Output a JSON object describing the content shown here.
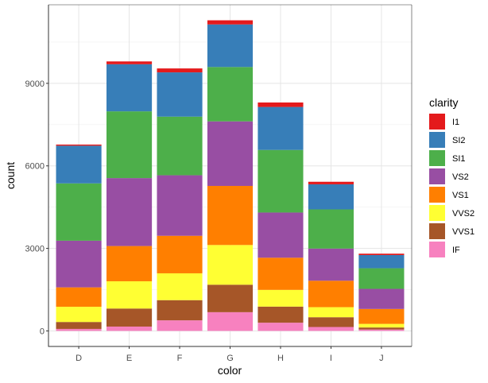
{
  "chart_data": {
    "type": "bar",
    "stacked": true,
    "xlabel": "color",
    "ylabel": "count",
    "ylim": [
      0,
      11292
    ],
    "yticks": [
      "0",
      "3000",
      "6000",
      "9000"
    ],
    "grid": true,
    "legend_position": "right",
    "legend_title": "clarity",
    "categories": [
      "D",
      "E",
      "F",
      "G",
      "H",
      "I",
      "J"
    ],
    "series": [
      {
        "name": "I1",
        "color": "#E41A1C",
        "values": [
          42,
          102,
          143,
          150,
          162,
          92,
          50
        ]
      },
      {
        "name": "SI2",
        "color": "#377EB8",
        "values": [
          1370,
          1713,
          1609,
          1548,
          1563,
          912,
          479
        ]
      },
      {
        "name": "SI1",
        "color": "#4DAF4A",
        "values": [
          2083,
          2426,
          2131,
          1976,
          2275,
          1424,
          750
        ]
      },
      {
        "name": "VS2",
        "color": "#984EA3",
        "values": [
          1697,
          2470,
          2201,
          2347,
          1643,
          1169,
          731
        ]
      },
      {
        "name": "VS1",
        "color": "#FF7F00",
        "values": [
          705,
          1281,
          1364,
          2148,
          1169,
          962,
          542
        ]
      },
      {
        "name": "VVS2",
        "color": "#FFFF33",
        "values": [
          553,
          991,
          975,
          1443,
          608,
          365,
          131
        ]
      },
      {
        "name": "VVS1",
        "color": "#A65628",
        "values": [
          252,
          656,
          734,
          999,
          585,
          355,
          74
        ]
      },
      {
        "name": "IF",
        "color": "#F781BF",
        "values": [
          73,
          158,
          385,
          681,
          299,
          143,
          51
        ]
      }
    ]
  }
}
